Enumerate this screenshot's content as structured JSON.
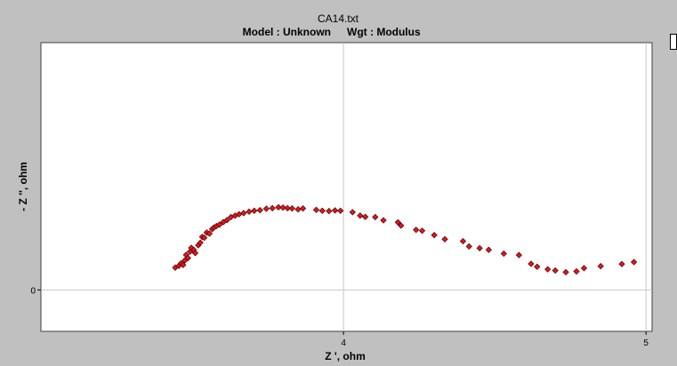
{
  "chart_data": {
    "type": "scatter",
    "title": "CA14.txt",
    "subtitle_model": "Model : Unknown",
    "subtitle_weight": "Wgt : Modulus",
    "xlabel": "Z ', ohm",
    "ylabel": "- Z '', ohm",
    "xlim": [
      3.0,
      5.02
    ],
    "ylim": [
      -0.143,
      0.853
    ],
    "x_ticks": [
      4,
      5
    ],
    "x_tick_labels": [
      "4",
      "5"
    ],
    "y_ticks": [
      0
    ],
    "y_tick_labels": [
      "0"
    ],
    "grid": true,
    "legend": "none",
    "colors": {
      "background": "#c0c0c0",
      "plot_area": "#ffffff",
      "marker_fill": "#e0151b",
      "marker_edge": "#330000",
      "grid": "#c8c8c8"
    },
    "series": [
      {
        "points": [
          [
            3.444,
            0.077
          ],
          [
            3.456,
            0.083
          ],
          [
            3.463,
            0.092
          ],
          [
            3.47,
            0.086
          ],
          [
            3.476,
            0.102
          ],
          [
            3.48,
            0.121
          ],
          [
            3.486,
            0.11
          ],
          [
            3.493,
            0.132
          ],
          [
            3.497,
            0.145
          ],
          [
            3.505,
            0.138
          ],
          [
            3.51,
            0.127
          ],
          [
            3.52,
            0.154
          ],
          [
            3.527,
            0.163
          ],
          [
            3.533,
            0.183
          ],
          [
            3.54,
            0.18
          ],
          [
            3.548,
            0.198
          ],
          [
            3.557,
            0.194
          ],
          [
            3.566,
            0.21
          ],
          [
            3.572,
            0.215
          ],
          [
            3.58,
            0.22
          ],
          [
            3.59,
            0.225
          ],
          [
            3.603,
            0.234
          ],
          [
            3.615,
            0.241
          ],
          [
            3.628,
            0.251
          ],
          [
            3.642,
            0.256
          ],
          [
            3.655,
            0.261
          ],
          [
            3.67,
            0.265
          ],
          [
            3.688,
            0.27
          ],
          [
            3.705,
            0.273
          ],
          [
            3.724,
            0.275
          ],
          [
            3.745,
            0.28
          ],
          [
            3.765,
            0.282
          ],
          [
            3.785,
            0.285
          ],
          [
            3.8,
            0.284
          ],
          [
            3.815,
            0.282
          ],
          [
            3.83,
            0.281
          ],
          [
            3.85,
            0.278
          ],
          [
            3.866,
            0.281
          ],
          [
            3.91,
            0.276
          ],
          [
            3.93,
            0.273
          ],
          [
            3.952,
            0.272
          ],
          [
            3.972,
            0.274
          ],
          [
            3.99,
            0.273
          ],
          [
            4.03,
            0.268
          ],
          [
            4.055,
            0.256
          ],
          [
            4.072,
            0.252
          ],
          [
            4.105,
            0.251
          ],
          [
            4.132,
            0.24
          ],
          [
            4.18,
            0.233
          ],
          [
            4.19,
            0.222
          ],
          [
            4.24,
            0.207
          ],
          [
            4.26,
            0.204
          ],
          [
            4.3,
            0.189
          ],
          [
            4.335,
            0.175
          ],
          [
            4.395,
            0.168
          ],
          [
            4.415,
            0.15
          ],
          [
            4.45,
            0.144
          ],
          [
            4.48,
            0.138
          ],
          [
            4.53,
            0.125
          ],
          [
            4.58,
            0.12
          ],
          [
            4.62,
            0.09
          ],
          [
            4.64,
            0.08
          ],
          [
            4.675,
            0.071
          ],
          [
            4.7,
            0.067
          ],
          [
            4.735,
            0.061
          ],
          [
            4.77,
            0.064
          ],
          [
            4.795,
            0.075
          ],
          [
            4.85,
            0.082
          ],
          [
            4.92,
            0.089
          ],
          [
            4.96,
            0.096
          ]
        ]
      }
    ]
  }
}
